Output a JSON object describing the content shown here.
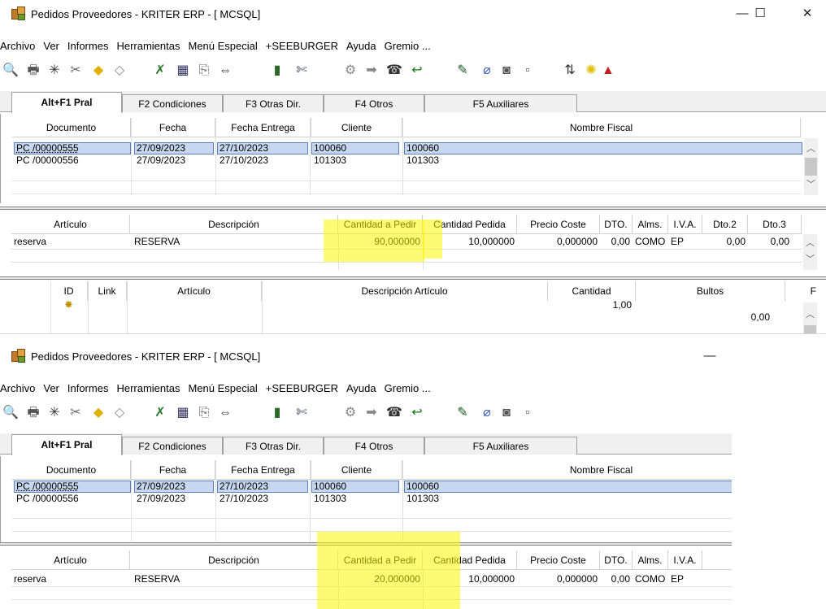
{
  "window": {
    "title": "Pedidos Proveedores - KRITER ERP - [ MCSQL]",
    "minimize_glyph": "—",
    "maximize_glyph": "☐",
    "close_glyph": "✕"
  },
  "menu": [
    "Archivo",
    "Ver",
    "Informes",
    "Herramientas",
    "Menú Especial",
    "+SEEBURGER",
    "Ayuda",
    "Gremio ..."
  ],
  "toolbar_icons": [
    {
      "name": "preview-icon",
      "glyph": "🔍"
    },
    {
      "name": "print-icon",
      "glyph": "🖶"
    },
    {
      "name": "star-icon",
      "glyph": "✳"
    },
    {
      "name": "tools-icon",
      "glyph": "✂"
    },
    {
      "name": "warning-icon",
      "glyph": "◆"
    },
    {
      "name": "diamond-icon",
      "glyph": "◇"
    },
    {
      "name": "chart-icon",
      "glyph": "✗"
    },
    {
      "name": "calculator-icon",
      "glyph": "▦"
    },
    {
      "name": "copy-icon",
      "glyph": "⎘"
    },
    {
      "name": "split-icon",
      "glyph": "⇔"
    },
    {
      "name": "bottle-icon",
      "glyph": "▮"
    },
    {
      "name": "cut-icon",
      "glyph": "✄"
    },
    {
      "name": "gear-icon",
      "glyph": "⚙"
    },
    {
      "name": "arrow-right-icon",
      "glyph": "➡"
    },
    {
      "name": "phone-icon",
      "glyph": "☎"
    },
    {
      "name": "undo-icon",
      "glyph": "↩"
    },
    {
      "name": "pen-icon",
      "glyph": "✎"
    },
    {
      "name": "clip-icon",
      "glyph": "⌀"
    },
    {
      "name": "camera-icon",
      "glyph": "◙"
    },
    {
      "name": "doc-icon",
      "glyph": "▫"
    },
    {
      "name": "sort-icon",
      "glyph": "⇅"
    },
    {
      "name": "bulb-icon",
      "glyph": "✺"
    }
  ],
  "tabs": [
    "Alt+F1 Pral",
    "F2 Condiciones",
    "F3 Otras Dir.",
    "F4 Otros",
    "F5 Auxiliares"
  ],
  "orders": {
    "headers": [
      "Documento",
      "Fecha",
      "Fecha Entrega",
      "Cliente",
      "Nombre Fiscal"
    ],
    "rows": [
      [
        "PC /00000555",
        "27/09/2023",
        "27/10/2023",
        "100060",
        "100060"
      ],
      [
        "PC /00000556",
        "27/09/2023",
        "27/10/2023",
        "101303",
        "101303"
      ]
    ]
  },
  "lines_top": {
    "headers": [
      "Artículo",
      "Descripción",
      "Cantidad a Pedir",
      "Cantidad Pedida",
      "Precio Coste",
      "DTO.",
      "Alms.",
      "I.V.A.",
      "Dto.2",
      "Dto.3"
    ],
    "rows": [
      [
        "reserva",
        "RESERVA",
        "90,000000",
        "10,000000",
        "0,000000",
        "0,00",
        "COMO",
        "EP",
        "0,00",
        "0,00"
      ]
    ]
  },
  "lines_bottom": {
    "headers": [
      "Artículo",
      "Descripción",
      "Cantidad a Pedir",
      "Cantidad Pedida",
      "Precio Coste",
      "DTO.",
      "Alms.",
      "I.V.A."
    ],
    "rows": [
      [
        "reserva",
        "RESERVA",
        "20,000000",
        "10,000000",
        "0,000000",
        "0,00",
        "COMO",
        "EP"
      ]
    ]
  },
  "details": {
    "headers": [
      "ID",
      "Link",
      "Artículo",
      "Descripción Artículo",
      "Cantidad",
      "Bultos",
      "F"
    ],
    "row": {
      "cantidad": "1,00",
      "bultos": "0,00"
    }
  },
  "colors": {
    "selection": "#c7d7ef",
    "highlight": "#fff500"
  }
}
